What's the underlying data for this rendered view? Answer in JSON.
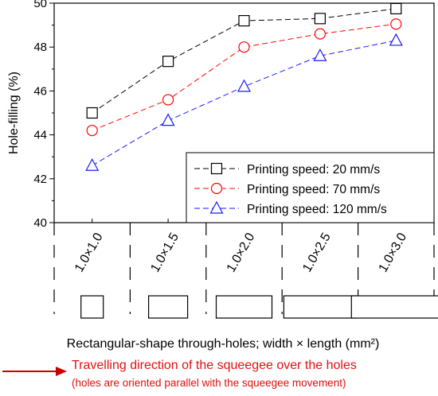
{
  "chart_data": {
    "type": "line",
    "ylabel": "Hole-filling (%)",
    "xlabel": "Rectangular-shape through-holes; width × length (mm²)",
    "ylim": [
      40,
      50
    ],
    "yticks": [
      "40",
      "42",
      "44",
      "46",
      "48",
      "50"
    ],
    "categories": [
      "1.0×1.0",
      "1.0×1.5",
      "1.0×2.0",
      "1.0×2.5",
      "1.0×3.0"
    ],
    "hole_aspect_ratios": [
      1.0,
      1.5,
      2.0,
      2.5,
      3.0
    ],
    "series": [
      {
        "name": "Printing speed: 20 mm/s",
        "values": [
          45.0,
          47.35,
          49.2,
          49.3,
          49.75
        ],
        "color": "#000000",
        "marker": "square"
      },
      {
        "name": "Printing speed: 70 mm/s",
        "values": [
          44.2,
          45.6,
          48.0,
          48.6,
          49.05
        ],
        "color": "#ff0000",
        "marker": "circle"
      },
      {
        "name": "Printing speed: 120 mm/s",
        "values": [
          42.6,
          44.65,
          46.2,
          47.6,
          48.3
        ],
        "color": "#1a1aff",
        "marker": "triangle"
      }
    ],
    "legend_position": "bottom-right",
    "grid": false
  },
  "annotation": {
    "arrow_color": "#cc0000",
    "main_text": "Travelling direction of the squeegee over the holes",
    "sub_text": "(holes are oriented parallel with the squeegee movement)"
  }
}
